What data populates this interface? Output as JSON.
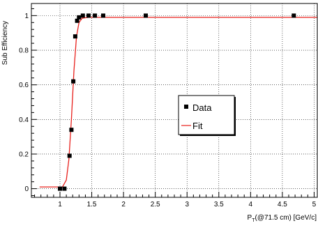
{
  "chart_data": {
    "type": "scatter",
    "title": "",
    "xlabel_main": "P",
    "xlabel_sub": "T",
    "xlabel_rest": "(@71.5 cm) [GeV/c]",
    "ylabel": "Sub Efficiency",
    "xlim": [
      0.55,
      5.05
    ],
    "ylim": [
      -0.05,
      1.07
    ],
    "grid": true,
    "x_ticks": [
      {
        "value": 1.0,
        "label": "1"
      },
      {
        "value": 1.5,
        "label": "1.5"
      },
      {
        "value": 2.0,
        "label": "2"
      },
      {
        "value": 2.5,
        "label": "2.5"
      },
      {
        "value": 3.0,
        "label": "3"
      },
      {
        "value": 3.5,
        "label": "3.5"
      },
      {
        "value": 4.0,
        "label": "4"
      },
      {
        "value": 4.5,
        "label": "4.5"
      },
      {
        "value": 5.0,
        "label": "5"
      }
    ],
    "y_ticks": [
      {
        "value": 0.0,
        "label": "0"
      },
      {
        "value": 0.2,
        "label": "0.2"
      },
      {
        "value": 0.4,
        "label": "0.4"
      },
      {
        "value": 0.6,
        "label": "0.6"
      },
      {
        "value": 0.8,
        "label": "0.8"
      },
      {
        "value": 1.0,
        "label": "1"
      }
    ],
    "series": [
      {
        "name": "Data",
        "kind": "markers",
        "color": "#000000",
        "points": [
          {
            "x": 1.0,
            "y": 0.0
          },
          {
            "x": 1.07,
            "y": 0.0
          },
          {
            "x": 1.15,
            "y": 0.19
          },
          {
            "x": 1.18,
            "y": 0.34
          },
          {
            "x": 1.21,
            "y": 0.62
          },
          {
            "x": 1.24,
            "y": 0.88
          },
          {
            "x": 1.27,
            "y": 0.97
          },
          {
            "x": 1.3,
            "y": 0.99
          },
          {
            "x": 1.36,
            "y": 1.0
          },
          {
            "x": 1.45,
            "y": 1.0
          },
          {
            "x": 1.55,
            "y": 1.0
          },
          {
            "x": 1.68,
            "y": 1.0
          },
          {
            "x": 2.35,
            "y": 1.0
          },
          {
            "x": 4.68,
            "y": 1.0
          }
        ]
      },
      {
        "name": "Fit",
        "kind": "line",
        "color": "#e8201c",
        "points": [
          {
            "x": 0.68,
            "y": 0.01
          },
          {
            "x": 1.04,
            "y": 0.01
          },
          {
            "x": 1.1,
            "y": 0.05
          },
          {
            "x": 1.14,
            "y": 0.17
          },
          {
            "x": 1.18,
            "y": 0.4
          },
          {
            "x": 1.22,
            "y": 0.68
          },
          {
            "x": 1.26,
            "y": 0.88
          },
          {
            "x": 1.3,
            "y": 0.96
          },
          {
            "x": 1.35,
            "y": 0.985
          },
          {
            "x": 1.45,
            "y": 0.99
          },
          {
            "x": 5.05,
            "y": 0.99
          }
        ]
      }
    ],
    "legend": {
      "placement": "center-right",
      "entries": [
        {
          "label": "Data",
          "marker": "square",
          "color": "#000000"
        },
        {
          "label": "Fit",
          "marker": "line",
          "color": "#e8201c"
        }
      ]
    }
  }
}
